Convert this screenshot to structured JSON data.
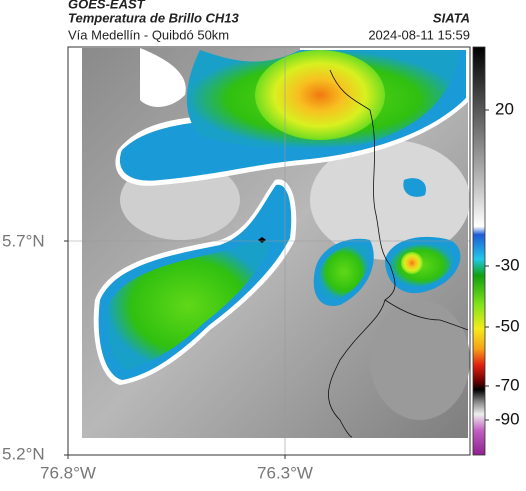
{
  "header": {
    "product": "GOES-EAST",
    "title": "Temperatura de Brillo CH13",
    "source": "SIATA",
    "route": "Vía Medellín - Quibdó 50km",
    "timestamp": "2024-08-11 15:59"
  },
  "axes": {
    "lat_labels": [
      "5.7°N",
      "5.2°N"
    ],
    "lon_labels": [
      "76.8°W",
      "76.3°W"
    ]
  },
  "colorbar": {
    "ticks": [
      20,
      -30,
      -50,
      -70,
      -90
    ]
  }
}
